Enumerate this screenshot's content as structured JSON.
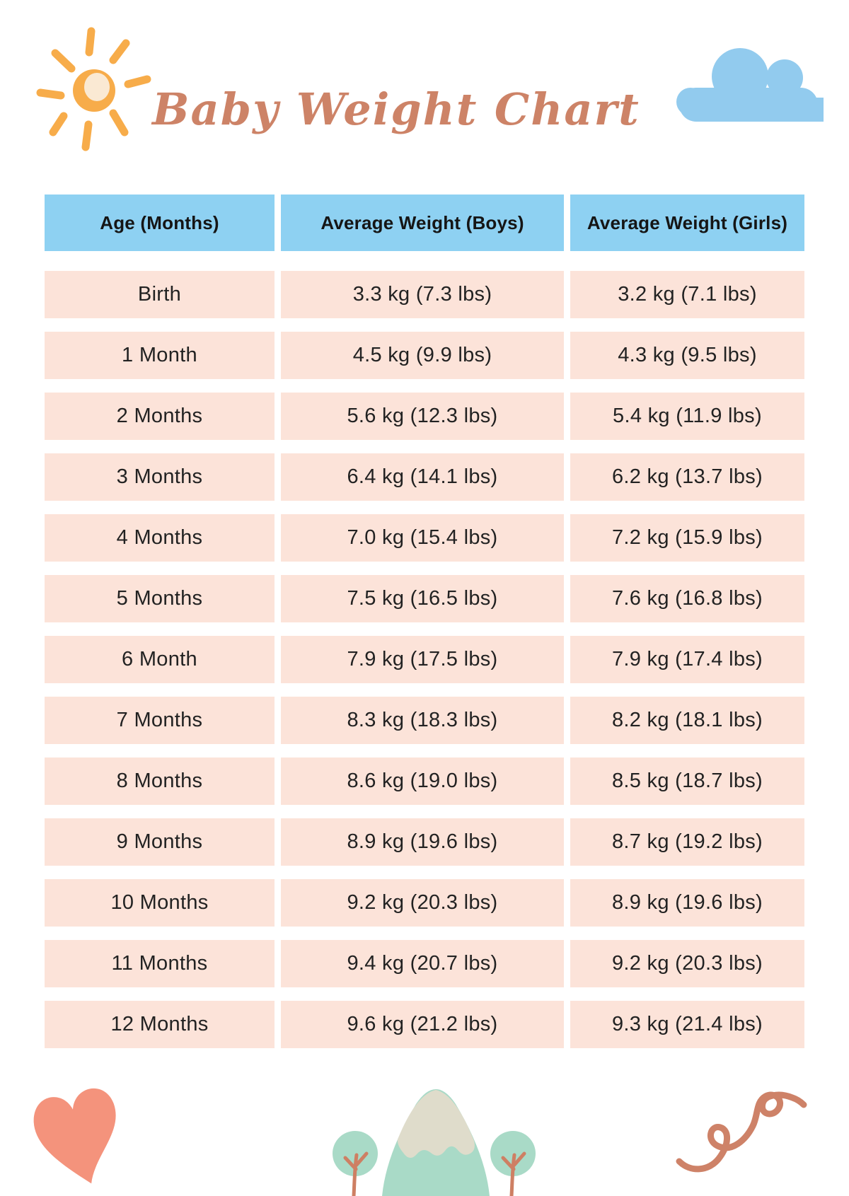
{
  "page": {
    "title": "Baby Weight Chart"
  },
  "table": {
    "headers": [
      "Age (Months)",
      "Average Weight (Boys)",
      "Average Weight (Girls)"
    ],
    "rows": [
      [
        "Birth",
        "3.3 kg (7.3 lbs)",
        "3.2 kg (7.1 lbs)"
      ],
      [
        "1 Month",
        "4.5 kg (9.9 lbs)",
        "4.3 kg (9.5 lbs)"
      ],
      [
        "2 Months",
        "5.6 kg (12.3 lbs)",
        "5.4 kg (11.9 lbs)"
      ],
      [
        "3 Months",
        "6.4 kg (14.1 lbs)",
        "6.2 kg (13.7 lbs)"
      ],
      [
        "4 Months",
        "7.0 kg (15.4 lbs)",
        "7.2 kg (15.9 lbs)"
      ],
      [
        "5 Months",
        "7.5 kg (16.5 lbs)",
        "7.6 kg (16.8 lbs)"
      ],
      [
        "6 Month",
        "7.9 kg (17.5 lbs)",
        "7.9 kg (17.4 lbs)"
      ],
      [
        "7 Months",
        "8.3 kg (18.3 lbs)",
        "8.2 kg (18.1 lbs)"
      ],
      [
        "8 Months",
        "8.6 kg (19.0 lbs)",
        "8.5 kg (18.7 lbs)"
      ],
      [
        "9 Months",
        "8.9 kg (19.6 lbs)",
        "8.7 kg (19.2 lbs)"
      ],
      [
        "10 Months",
        "9.2 kg (20.3 lbs)",
        "8.9 kg (19.6 lbs)"
      ],
      [
        "11 Months",
        "9.4 kg (20.7 lbs)",
        "9.2 kg (20.3 lbs)"
      ],
      [
        "12 Months",
        "9.6 kg (21.2 lbs)",
        "9.3 kg (21.4 lbs)"
      ]
    ]
  },
  "chart_data": {
    "type": "table",
    "title": "Baby Weight Chart",
    "categories": [
      "Birth",
      "1 Month",
      "2 Months",
      "3 Months",
      "4 Months",
      "5 Months",
      "6 Month",
      "7 Months",
      "8 Months",
      "9 Months",
      "10 Months",
      "11 Months",
      "12 Months"
    ],
    "series": [
      {
        "name": "Average Weight (Boys) kg",
        "values": [
          3.3,
          4.5,
          5.6,
          6.4,
          7.0,
          7.5,
          7.9,
          8.3,
          8.6,
          8.9,
          9.2,
          9.4,
          9.6
        ]
      },
      {
        "name": "Average Weight (Boys) lbs",
        "values": [
          7.3,
          9.9,
          12.3,
          14.1,
          15.4,
          16.5,
          17.5,
          18.3,
          19.0,
          19.6,
          20.3,
          20.7,
          21.2
        ]
      },
      {
        "name": "Average Weight (Girls) kg",
        "values": [
          3.2,
          4.3,
          5.4,
          6.2,
          7.2,
          7.6,
          7.9,
          8.2,
          8.5,
          8.7,
          8.9,
          9.2,
          9.3
        ]
      },
      {
        "name": "Average Weight (Girls) lbs",
        "values": [
          7.1,
          9.5,
          11.9,
          13.7,
          15.9,
          16.8,
          17.4,
          18.1,
          18.7,
          19.2,
          19.6,
          20.3,
          21.4
        ]
      }
    ]
  },
  "colors": {
    "header_blue": "#8ed1f2",
    "row_peach": "#fce3d9",
    "title_terracotta": "#cd8367",
    "text_dark": "#1e1e1e",
    "sun_orange": "#f7ac4a",
    "sun_center_cream": "#fae9d3",
    "cloud_blue": "#92cbee",
    "heart_coral": "#f4937c",
    "squiggle_coral": "#ce8268",
    "mountain_teal": "#a9dac7",
    "snow_beige": "#dfdccb",
    "trunk_coral": "#ce7f63"
  },
  "icons": {
    "top_left": "sun-icon",
    "top_right": "cloud-icon",
    "bottom_left": "heart-icon",
    "bottom_center": "mountain-trees-icon",
    "bottom_right": "squiggle-icon"
  }
}
